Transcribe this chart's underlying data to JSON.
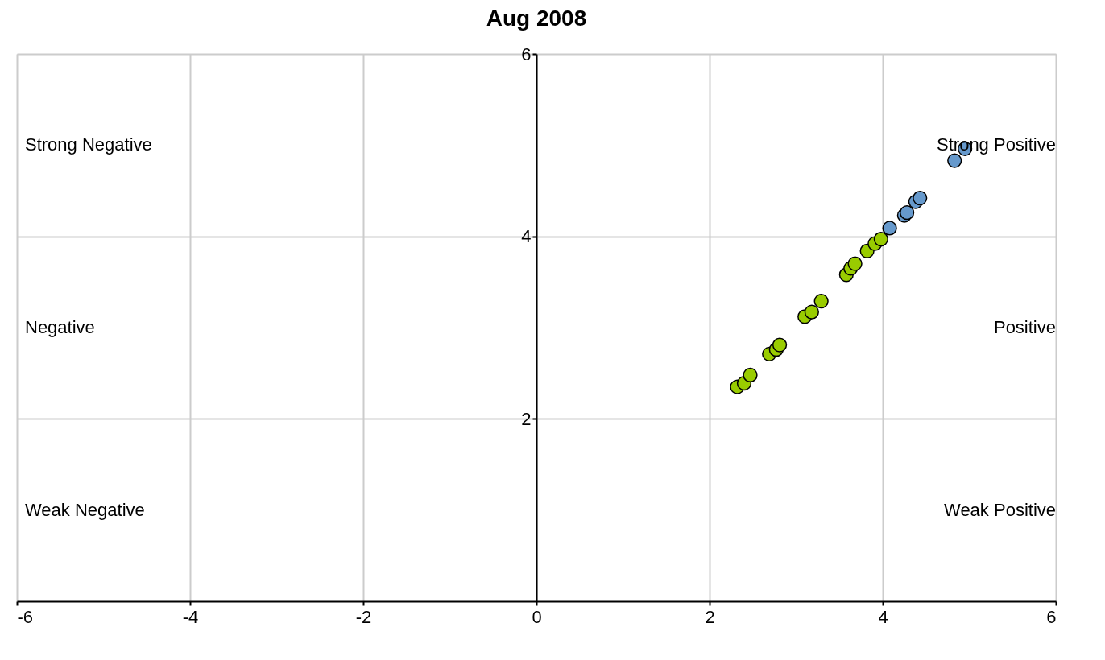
{
  "chart_data": {
    "type": "scatter",
    "title": "Aug 2008",
    "xlim": [
      -6,
      6
    ],
    "ylim": [
      0,
      6
    ],
    "xticks": [
      -6,
      -4,
      -2,
      0,
      2,
      4,
      6
    ],
    "yticks": [
      2,
      4,
      6
    ],
    "grid": true,
    "marker": "circle",
    "series": [
      {
        "color": "#99cc00",
        "x": [
          2.32,
          2.4,
          2.47,
          2.69,
          2.77,
          2.81,
          3.1,
          3.18,
          3.29,
          3.58,
          3.63,
          3.68,
          3.82,
          3.91,
          3.98
        ],
        "values": [
          2.35,
          2.39,
          2.48,
          2.71,
          2.76,
          2.81,
          3.12,
          3.17,
          3.29,
          3.58,
          3.65,
          3.7,
          3.84,
          3.92,
          3.97
        ]
      },
      {
        "color": "#6699cc",
        "x": [
          4.08,
          4.25,
          4.28,
          4.38,
          4.43,
          4.83,
          4.95
        ],
        "values": [
          4.09,
          4.23,
          4.26,
          4.38,
          4.42,
          4.83,
          4.96
        ]
      }
    ],
    "annotations": [
      "Strong Negative",
      "Strong Positive",
      "Negative",
      "Positive",
      "Weak Negative",
      "Weak Positive"
    ]
  }
}
